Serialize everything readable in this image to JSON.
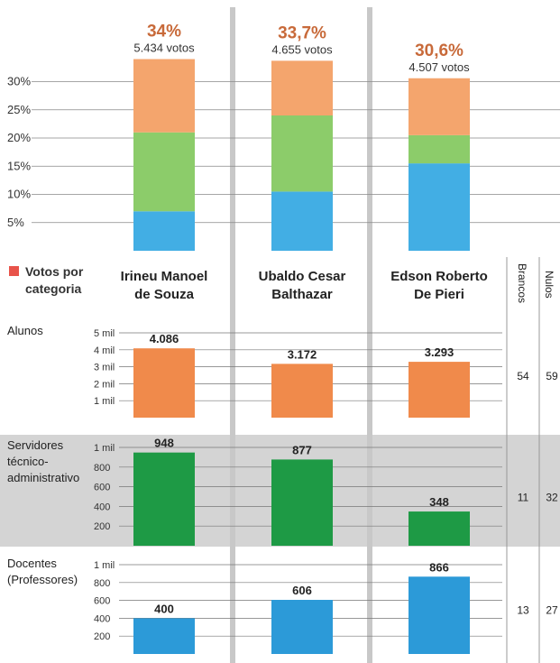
{
  "colors": {
    "orange": "#f08a4b",
    "green": "#1e9a45",
    "blue": "#2c9ad8",
    "stack_orange": "#f4a56d",
    "stack_green": "#8ccc6a",
    "stack_blue": "#42aee4",
    "pct_text": "#c86a3a",
    "legend_square": "#e8534a",
    "band": "#d4d4d4",
    "divider": "#c8c8c8"
  },
  "legend": {
    "label_line1": "Votos por",
    "label_line2": "categoria"
  },
  "side_headers": {
    "brancos": "Brancos",
    "nulos": "Nulos"
  },
  "chart_data": [
    {
      "type": "bar",
      "stacked": true,
      "categories": [
        "Irineu Manoel de Souza",
        "Ubaldo Cesar Balthazar",
        "Edson Roberto De Pieri"
      ],
      "category_lines": [
        [
          "Irineu Manoel",
          "de Souza"
        ],
        [
          "Ubaldo Cesar",
          "Balthazar"
        ],
        [
          "Edson Roberto",
          "De Pieri"
        ]
      ],
      "totals_pct": [
        "34%",
        "33,7%",
        "30,6%"
      ],
      "totals_votes": [
        "5.434 votos",
        "4.655 votos",
        "4.507 votos"
      ],
      "series": [
        {
          "values": [
            7,
            10.5,
            15.5
          ],
          "color": "#42aee4"
        },
        {
          "values": [
            14,
            13.5,
            5
          ],
          "color": "#8ccc6a"
        },
        {
          "values": [
            13,
            9.7,
            10.1
          ],
          "color": "#f4a56d"
        }
      ],
      "yticks": [
        "5%",
        "10%",
        "15%",
        "20%",
        "25%",
        "30%"
      ],
      "ytick_values": [
        5,
        10,
        15,
        20,
        25,
        30
      ],
      "ylim": [
        0,
        35
      ],
      "grid": true
    },
    {
      "type": "bar",
      "category": "Alunos",
      "values": [
        4086,
        3172,
        3293
      ],
      "value_labels": [
        "4.086",
        "3.172",
        "3.293"
      ],
      "yticks": [
        "1 mil",
        "2 mil",
        "3 mil",
        "4 mil",
        "5 mil"
      ],
      "ytick_values": [
        1000,
        2000,
        3000,
        4000,
        5000
      ],
      "ylim": [
        0,
        5000
      ],
      "color": "#f08a4b",
      "brancos": "54",
      "nulos": "59"
    },
    {
      "type": "bar",
      "category_lines": [
        "Servidores",
        "técnico-",
        "administrativo"
      ],
      "values": [
        948,
        877,
        348
      ],
      "value_labels": [
        "948",
        "877",
        "348"
      ],
      "yticks": [
        "200",
        "400",
        "600",
        "800",
        "1 mil"
      ],
      "ytick_values": [
        200,
        400,
        600,
        800,
        1000
      ],
      "ylim": [
        0,
        1000
      ],
      "color": "#1e9a45",
      "brancos": "11",
      "nulos": "32"
    },
    {
      "type": "bar",
      "category_lines": [
        "Docentes",
        "(Professores)"
      ],
      "values": [
        400,
        606,
        866
      ],
      "value_labels": [
        "400",
        "606",
        "866"
      ],
      "yticks": [
        "200",
        "400",
        "600",
        "800",
        "1 mil"
      ],
      "ytick_values": [
        200,
        400,
        600,
        800,
        1000
      ],
      "ylim": [
        0,
        1000
      ],
      "color": "#2c9ad8",
      "brancos": "13",
      "nulos": "27"
    }
  ]
}
